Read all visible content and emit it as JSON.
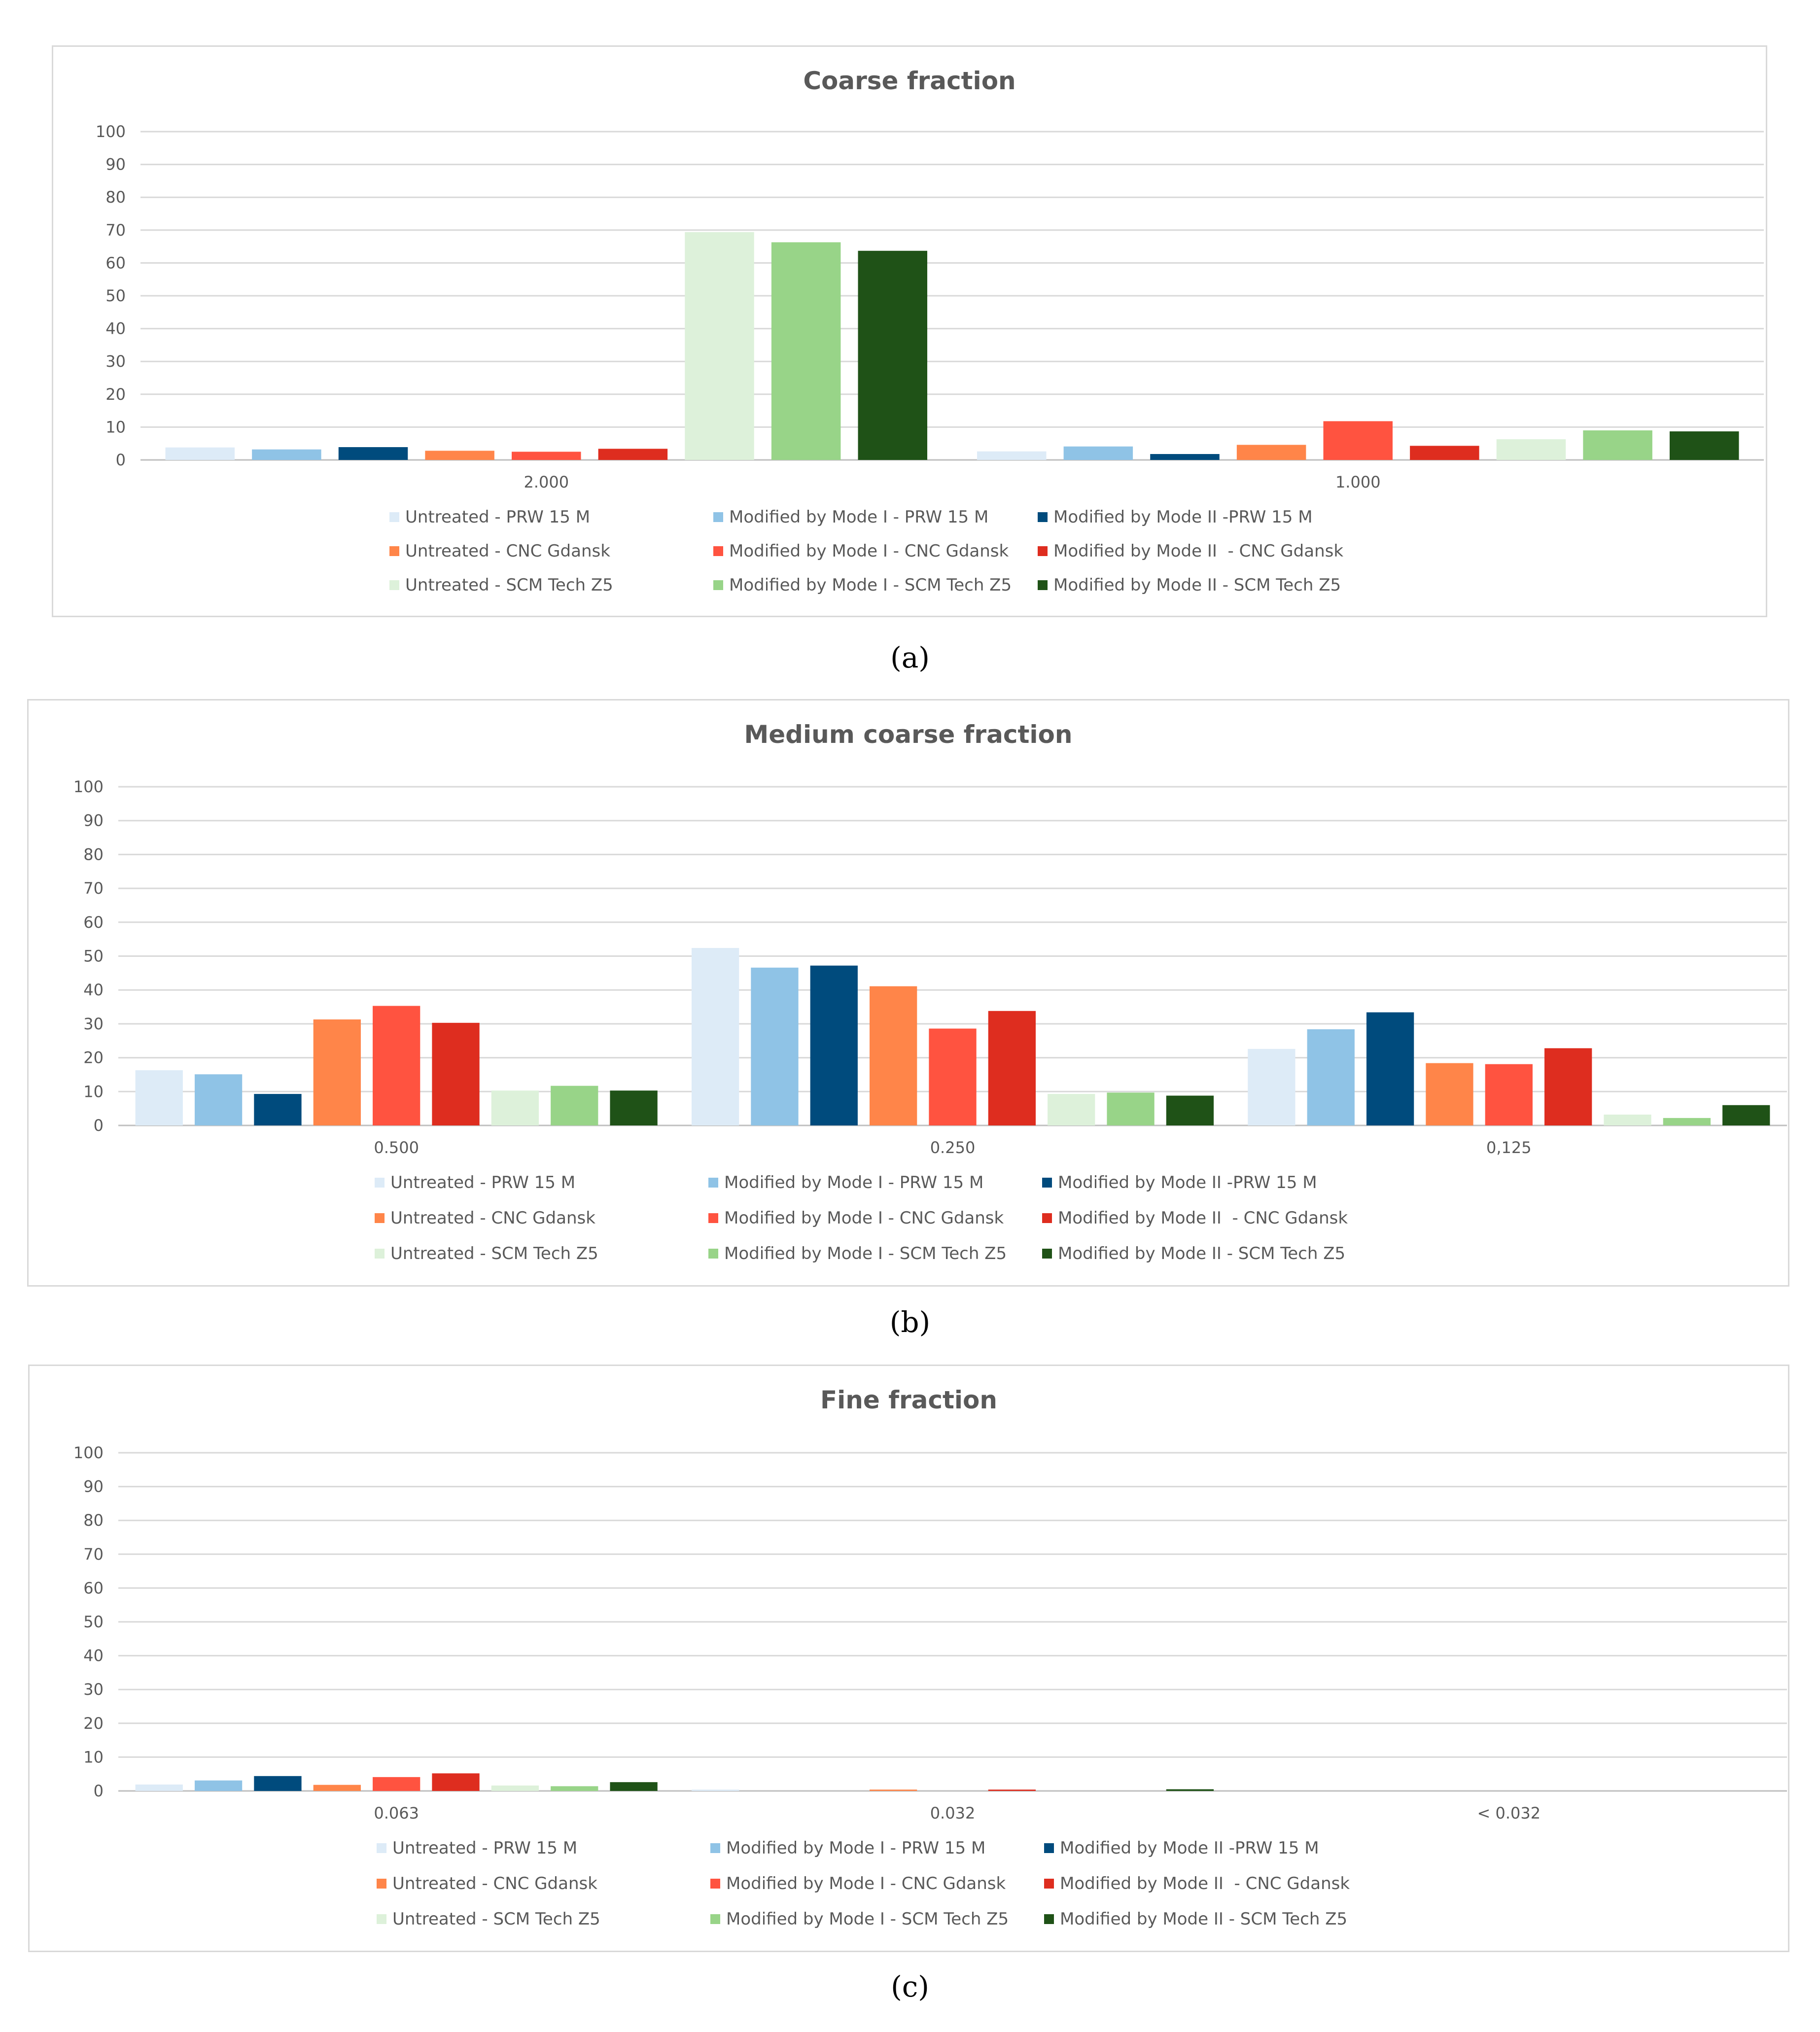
{
  "legend": [
    {
      "name": "Untreated - PRW 15 M",
      "color": "#DDEBF7"
    },
    {
      "name": "Modified by Mode I - PRW 15 M",
      "color": "#8FC3E6"
    },
    {
      "name": "Modified by Mode II -PRW 15 M",
      "color": "#004B7D"
    },
    {
      "name": "Untreated - CNC Gdansk",
      "color": "#FF8549"
    },
    {
      "name": "Modified by Mode I - CNC Gdansk",
      "color": "#FF5340"
    },
    {
      "name": "Modified by Mode II  - CNC Gdansk",
      "color": "#DE2D1F"
    },
    {
      "name": "Untreated - SCM Tech Z5",
      "color": "#DDF1DA"
    },
    {
      "name": "Modified by Mode I - SCM Tech Z5",
      "color": "#98D488"
    },
    {
      "name": "Modified by Mode II - SCM Tech Z5",
      "color": "#1F5217"
    }
  ],
  "chart_data": [
    {
      "type": "bar",
      "title": "Coarse fraction",
      "panel_label": "(a)",
      "categories": [
        "2.000",
        "1.000"
      ],
      "ylim": [
        0,
        100
      ],
      "yticks": [
        0,
        10,
        20,
        30,
        40,
        50,
        60,
        70,
        80,
        90,
        100
      ],
      "xlabel": "",
      "ylabel": "",
      "series": [
        {
          "name": "Untreated - PRW 15 M",
          "values": [
            3.8,
            2.6
          ]
        },
        {
          "name": "Modified by Mode I - PRW 15 M",
          "values": [
            3.2,
            4.1
          ]
        },
        {
          "name": "Modified by Mode II -PRW 15 M",
          "values": [
            3.9,
            1.8
          ]
        },
        {
          "name": "Untreated - CNC Gdansk",
          "values": [
            2.8,
            4.6
          ]
        },
        {
          "name": "Modified by Mode I - CNC Gdansk",
          "values": [
            2.5,
            11.8
          ]
        },
        {
          "name": "Modified by Mode II  - CNC Gdansk",
          "values": [
            3.4,
            4.3
          ]
        },
        {
          "name": "Untreated - SCM Tech Z5",
          "values": [
            69.4,
            6.3
          ]
        },
        {
          "name": "Modified by Mode I - SCM Tech Z5",
          "values": [
            66.3,
            9.0
          ]
        },
        {
          "name": "Modified by Mode II - SCM Tech Z5",
          "values": [
            63.7,
            8.7
          ]
        }
      ]
    },
    {
      "type": "bar",
      "title": "Medium coarse fraction",
      "panel_label": "(b)",
      "categories": [
        "0.500",
        "0.250",
        "0,125"
      ],
      "ylim": [
        0,
        100
      ],
      "yticks": [
        0,
        10,
        20,
        30,
        40,
        50,
        60,
        70,
        80,
        90,
        100
      ],
      "xlabel": "",
      "ylabel": "",
      "series": [
        {
          "name": "Untreated - PRW 15 M",
          "values": [
            16.3,
            52.4,
            22.6
          ]
        },
        {
          "name": "Modified by Mode I - PRW 15 M",
          "values": [
            15.1,
            46.6,
            28.4
          ]
        },
        {
          "name": "Modified by Mode II -PRW 15 M",
          "values": [
            9.3,
            47.2,
            33.4
          ]
        },
        {
          "name": "Untreated - CNC Gdansk",
          "values": [
            31.3,
            41.1,
            18.4
          ]
        },
        {
          "name": "Modified by Mode I - CNC Gdansk",
          "values": [
            35.3,
            28.6,
            18.1
          ]
        },
        {
          "name": "Modified by Mode II  - CNC Gdansk",
          "values": [
            30.3,
            33.8,
            22.8
          ]
        },
        {
          "name": "Untreated - SCM Tech Z5",
          "values": [
            10.3,
            9.3,
            3.2
          ]
        },
        {
          "name": "Modified by Mode I - SCM Tech Z5",
          "values": [
            11.7,
            9.7,
            2.2
          ]
        },
        {
          "name": "Modified by Mode II - SCM Tech Z5",
          "values": [
            10.3,
            8.8,
            6.0
          ]
        }
      ]
    },
    {
      "type": "bar",
      "title": "Fine fraction",
      "panel_label": "(c)",
      "categories": [
        "0.063",
        "0.032",
        "< 0.032"
      ],
      "ylim": [
        0,
        100
      ],
      "yticks": [
        0,
        10,
        20,
        30,
        40,
        50,
        60,
        70,
        80,
        90,
        100
      ],
      "xlabel": "",
      "ylabel": "",
      "series": [
        {
          "name": "Untreated - PRW 15 M",
          "values": [
            1.9,
            0.4,
            0
          ]
        },
        {
          "name": "Modified by Mode I - PRW 15 M",
          "values": [
            3.1,
            0,
            0
          ]
        },
        {
          "name": "Modified by Mode II -PRW 15 M",
          "values": [
            4.4,
            0,
            0
          ]
        },
        {
          "name": "Untreated - CNC Gdansk",
          "values": [
            1.8,
            0.4,
            0
          ]
        },
        {
          "name": "Modified by Mode I - CNC Gdansk",
          "values": [
            4.1,
            0,
            0
          ]
        },
        {
          "name": "Modified by Mode II  - CNC Gdansk",
          "values": [
            5.2,
            0.4,
            0
          ]
        },
        {
          "name": "Untreated - SCM Tech Z5",
          "values": [
            1.6,
            0,
            0
          ]
        },
        {
          "name": "Modified by Mode I - SCM Tech Z5",
          "values": [
            1.4,
            0,
            0
          ]
        },
        {
          "name": "Modified by Mode II - SCM Tech Z5",
          "values": [
            2.6,
            0.5,
            0
          ]
        }
      ]
    }
  ]
}
